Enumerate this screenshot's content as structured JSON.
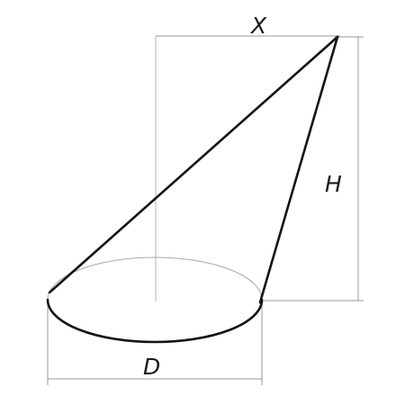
{
  "shape": "oblique-cone",
  "labels": {
    "offset": "X",
    "height": "H",
    "diameter": "D"
  },
  "colors": {
    "outline": "#141414",
    "construction": "#9a9a9a",
    "label": "#1a1a1a"
  }
}
